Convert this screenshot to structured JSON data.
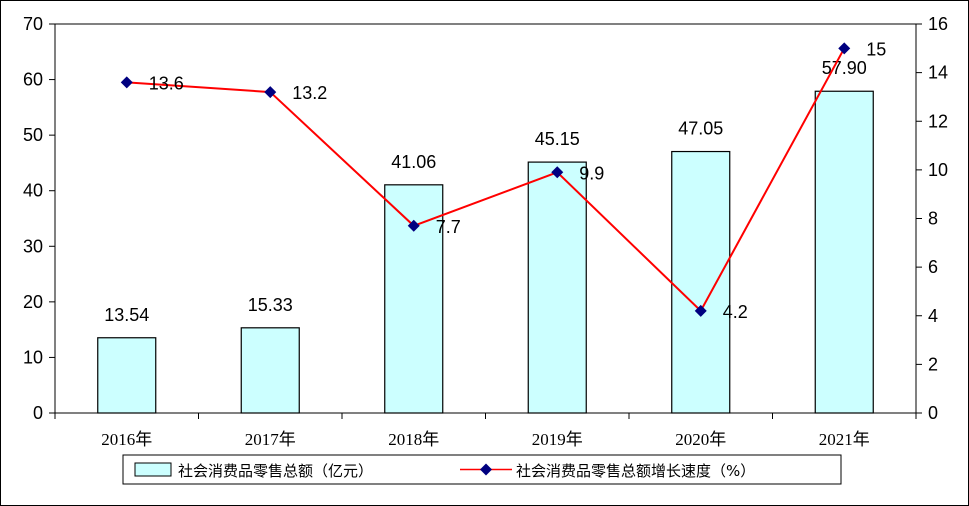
{
  "chart_data": {
    "type": "bar+line",
    "categories": [
      "2016年",
      "2017年",
      "2018年",
      "2019年",
      "2020年",
      "2021年"
    ],
    "series": [
      {
        "name": "社会消费品零售总额（亿元）",
        "type": "bar",
        "axis": "left",
        "values": [
          13.54,
          15.33,
          41.06,
          45.15,
          47.05,
          57.9
        ],
        "labels": [
          "13.54",
          "15.33",
          "41.06",
          "45.15",
          "47.05",
          "57.90"
        ],
        "color": "#ccffff"
      },
      {
        "name": "社会消费品零售总额增长速度（%）",
        "type": "line",
        "axis": "right",
        "values": [
          13.6,
          13.2,
          7.7,
          9.9,
          4.2,
          15
        ],
        "labels": [
          "13.6",
          "13.2",
          "7.7",
          "9.9",
          "4.2",
          "15"
        ],
        "color": "#ff0000",
        "marker_color": "#000080"
      }
    ],
    "y_left": {
      "min": 0,
      "max": 70,
      "step": 10
    },
    "y_right": {
      "min": 0,
      "max": 16,
      "step": 2
    },
    "grid": false,
    "legend_position": "bottom"
  }
}
